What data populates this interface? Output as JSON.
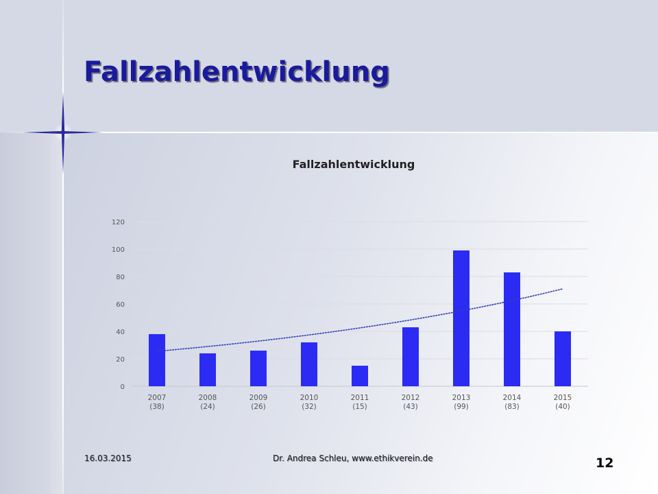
{
  "slide": {
    "title": "Fallzahlentwicklung",
    "footer_date": "16.03.2015",
    "footer_author": "Dr. Andrea Schleu, www.ethikverein.de",
    "page_number": "12"
  },
  "colors": {
    "bar": "#2b2bf4",
    "trendline": "#2f3fb8",
    "title": "#1a1a9c"
  },
  "chart_data": {
    "type": "bar",
    "title": "Fallzahlentwicklung",
    "xlabel": "",
    "ylabel": "",
    "categories": [
      [
        "2007",
        "(38)"
      ],
      [
        "2008",
        "(24)"
      ],
      [
        "2009",
        "(26)"
      ],
      [
        "2010",
        "(32)"
      ],
      [
        "2011",
        "(15)"
      ],
      [
        "2012",
        "(43)"
      ],
      [
        "2013",
        "(99)"
      ],
      [
        "2014",
        "(83)"
      ],
      [
        "2015",
        "(40)"
      ]
    ],
    "values": [
      38,
      24,
      26,
      32,
      15,
      43,
      99,
      83,
      40
    ],
    "ylim": [
      0,
      120
    ],
    "yticks": [
      0,
      20,
      40,
      60,
      80,
      100,
      120
    ],
    "grid": true,
    "trendline": {
      "type": "exponential",
      "style": "dotted",
      "start": 25.5,
      "end": 71
    }
  }
}
